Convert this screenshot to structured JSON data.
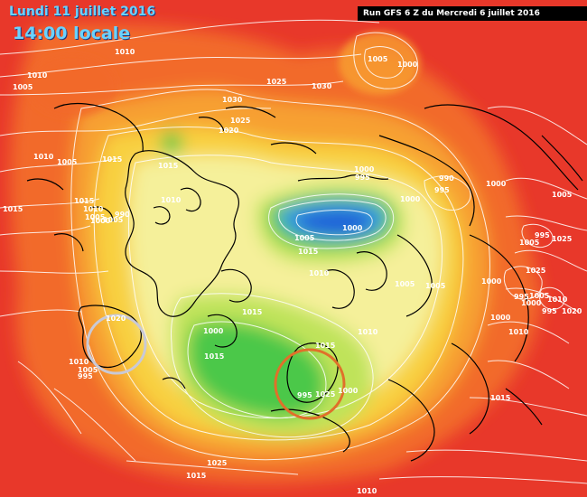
{
  "header": {
    "date": "Lundi 11 juillet 2016",
    "time": "14:00 locale",
    "run": "Run GFS 6 Z du Mercredi 6 juillet 2016"
  },
  "colors": {
    "very_high": "#e8382a",
    "high": "#f26a2b",
    "mid": "#f7a030",
    "moderate": "#f8d040",
    "neutral": "#f5f09a",
    "slightly_low": "#bfe35a",
    "low": "#4cc84a",
    "very_low_ring": "#3aa0e0",
    "very_low_core": "#1c5ed8",
    "isobar": "#ffffff",
    "coastline": "#000000",
    "circle_gray": "#c9c9d6",
    "circle_orange": "#e0702a"
  },
  "isobar_labels": [
    {
      "id": "l1",
      "text": "1010"
    },
    {
      "id": "l2",
      "text": "1005"
    },
    {
      "id": "l3",
      "text": "1010"
    },
    {
      "id": "l4",
      "text": "1005"
    },
    {
      "id": "l5",
      "text": "1000"
    },
    {
      "id": "l6",
      "text": "1025"
    },
    {
      "id": "l7",
      "text": "1030"
    },
    {
      "id": "l8",
      "text": "1030"
    },
    {
      "id": "l9",
      "text": "1025"
    },
    {
      "id": "l10",
      "text": "1020"
    },
    {
      "id": "l11",
      "text": "1010"
    },
    {
      "id": "l12",
      "text": "1005"
    },
    {
      "id": "l13",
      "text": "1015"
    },
    {
      "id": "l14",
      "text": "1015"
    },
    {
      "id": "l15",
      "text": "1015"
    },
    {
      "id": "l16",
      "text": "1010"
    },
    {
      "id": "l17",
      "text": "1015"
    },
    {
      "id": "l18",
      "text": "1010"
    },
    {
      "id": "l19",
      "text": "1005"
    },
    {
      "id": "l20",
      "text": "1000"
    },
    {
      "id": "l21",
      "text": "1005"
    },
    {
      "id": "l22",
      "text": "990"
    },
    {
      "id": "l23",
      "text": "1000"
    },
    {
      "id": "l24",
      "text": "995"
    },
    {
      "id": "l25",
      "text": "990"
    },
    {
      "id": "l26",
      "text": "995"
    },
    {
      "id": "l27",
      "text": "1000"
    },
    {
      "id": "l28",
      "text": "1000"
    },
    {
      "id": "l29",
      "text": "1000"
    },
    {
      "id": "l30",
      "text": "1005"
    },
    {
      "id": "l31",
      "text": "1015"
    },
    {
      "id": "l32",
      "text": "1005"
    },
    {
      "id": "l33",
      "text": "995"
    },
    {
      "id": "l34",
      "text": "1005"
    },
    {
      "id": "l35",
      "text": "1025"
    },
    {
      "id": "l36",
      "text": "1010"
    },
    {
      "id": "l37",
      "text": "1005"
    },
    {
      "id": "l38",
      "text": "1005"
    },
    {
      "id": "l39",
      "text": "1000"
    },
    {
      "id": "l40",
      "text": "1025"
    },
    {
      "id": "l41",
      "text": "1015"
    },
    {
      "id": "l42",
      "text": "1020"
    },
    {
      "id": "l43",
      "text": "1000"
    },
    {
      "id": "l44",
      "text": "1010"
    },
    {
      "id": "l45",
      "text": "995"
    },
    {
      "id": "l46",
      "text": "1000"
    },
    {
      "id": "l47",
      "text": "1005"
    },
    {
      "id": "l48",
      "text": "1010"
    },
    {
      "id": "l49",
      "text": "1000"
    },
    {
      "id": "l50",
      "text": "995"
    },
    {
      "id": "l51",
      "text": "1020"
    },
    {
      "id": "l52",
      "text": "1015"
    },
    {
      "id": "l53",
      "text": "1010"
    },
    {
      "id": "l54",
      "text": "1015"
    },
    {
      "id": "l55",
      "text": "1010"
    },
    {
      "id": "l56",
      "text": "1005"
    },
    {
      "id": "l57",
      "text": "995"
    },
    {
      "id": "l58",
      "text": "1000"
    },
    {
      "id": "l59",
      "text": "995"
    },
    {
      "id": "l60",
      "text": "1025"
    },
    {
      "id": "l61",
      "text": "1025"
    },
    {
      "id": "l62",
      "text": "1015"
    },
    {
      "id": "l63",
      "text": "1010"
    },
    {
      "id": "l64",
      "text": "1015"
    }
  ]
}
